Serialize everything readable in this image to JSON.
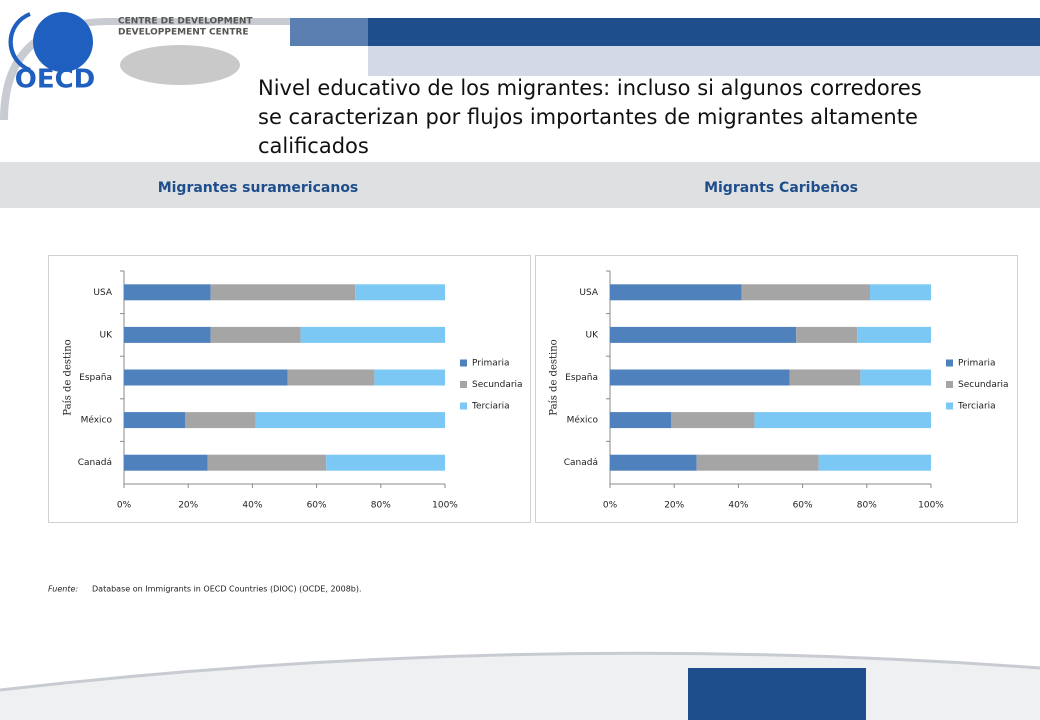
{
  "header": {
    "logo_text": "OECD",
    "centre_line_1": "CENTRE DE DEVELOPMENT",
    "centre_line_2": "DEVELOPPEMENT CENTRE",
    "title": "Nivel educativo de los migrantes: incluso si algunos corredores se caracterizan por flujos importantes de migrantes altamente calificados"
  },
  "chart_data": [
    {
      "type": "bar",
      "orientation": "horizontal",
      "stacked": true,
      "title": "Migrantes suramericanos",
      "y_label": "País de destino",
      "categories": [
        "USA",
        "UK",
        "España",
        "México",
        "Canadá"
      ],
      "series": [
        {
          "name": "Primaria",
          "color": "#4f81bd",
          "values": [
            27,
            27,
            51,
            19,
            26
          ]
        },
        {
          "name": "Secundaria",
          "color": "#a5a5a5",
          "values": [
            45,
            28,
            27,
            22,
            37
          ]
        },
        {
          "name": "Terciaria",
          "color": "#7cc8f4",
          "values": [
            28,
            45,
            22,
            59,
            37
          ]
        }
      ],
      "xlim": [
        0,
        100
      ],
      "xticks": [
        {
          "value": 0,
          "label": "0%"
        },
        {
          "value": 20,
          "label": "20%"
        },
        {
          "value": 40,
          "label": "40%"
        },
        {
          "value": 60,
          "label": "60%"
        },
        {
          "value": 80,
          "label": "80%"
        },
        {
          "value": 100,
          "label": "100%"
        }
      ],
      "legend": "right"
    },
    {
      "type": "bar",
      "orientation": "horizontal",
      "stacked": true,
      "title": "Migrants Caribeños",
      "y_label": "País de destino",
      "categories": [
        "USA",
        "UK",
        "España",
        "México",
        "Canadá"
      ],
      "series": [
        {
          "name": "Primaria",
          "color": "#4f81bd",
          "values": [
            41,
            58,
            56,
            19,
            27
          ]
        },
        {
          "name": "Secundaria",
          "color": "#a5a5a5",
          "values": [
            40,
            19,
            22,
            26,
            38
          ]
        },
        {
          "name": "Terciaria",
          "color": "#7cc8f4",
          "values": [
            19,
            23,
            22,
            55,
            35
          ]
        }
      ],
      "xlim": [
        0,
        100
      ],
      "xticks": [
        {
          "value": 0,
          "label": "0%"
        },
        {
          "value": 20,
          "label": "20%"
        },
        {
          "value": 40,
          "label": "40%"
        },
        {
          "value": 60,
          "label": "60%"
        },
        {
          "value": 80,
          "label": "80%"
        },
        {
          "value": 100,
          "label": "100%"
        }
      ],
      "legend": "right"
    }
  ],
  "source": {
    "label": "Fuente:",
    "text": "Database on Immigrants in OECD Countries (DIOC) (OCDE, 2008b)."
  }
}
